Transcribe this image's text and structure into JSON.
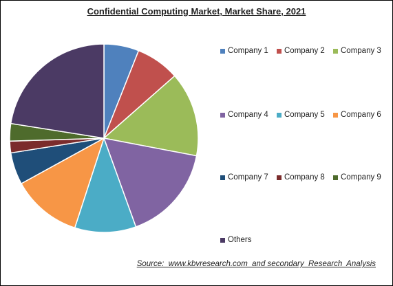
{
  "chart_data": {
    "type": "pie",
    "title": "Confidential Computing Market, Market Share, 2021",
    "slices": [
      {
        "label": "Company 1",
        "value": 6.0,
        "color": "#4F81BD"
      },
      {
        "label": "Company 2",
        "value": 7.5,
        "color": "#C0504D"
      },
      {
        "label": "Company 3",
        "value": 14.5,
        "color": "#9BBB59"
      },
      {
        "label": "Company 4",
        "value": 16.5,
        "color": "#8064A2"
      },
      {
        "label": "Company 5",
        "value": 10.5,
        "color": "#4BACC6"
      },
      {
        "label": "Company 6",
        "value": 12.0,
        "color": "#F79646"
      },
      {
        "label": "Company 7",
        "value": 5.5,
        "color": "#1F4E79"
      },
      {
        "label": "Company 8",
        "value": 2.0,
        "color": "#7B2C2C"
      },
      {
        "label": "Company 9",
        "value": 3.0,
        "color": "#4E6B2C"
      },
      {
        "label": "Others",
        "value": 22.5,
        "color": "#4B3A64"
      }
    ],
    "legend_position": "right",
    "start_angle": "12 o'clock, clockwise"
  },
  "source_text": "Source:  www.kbvresearch.com  and secondary  Research  Analysis"
}
